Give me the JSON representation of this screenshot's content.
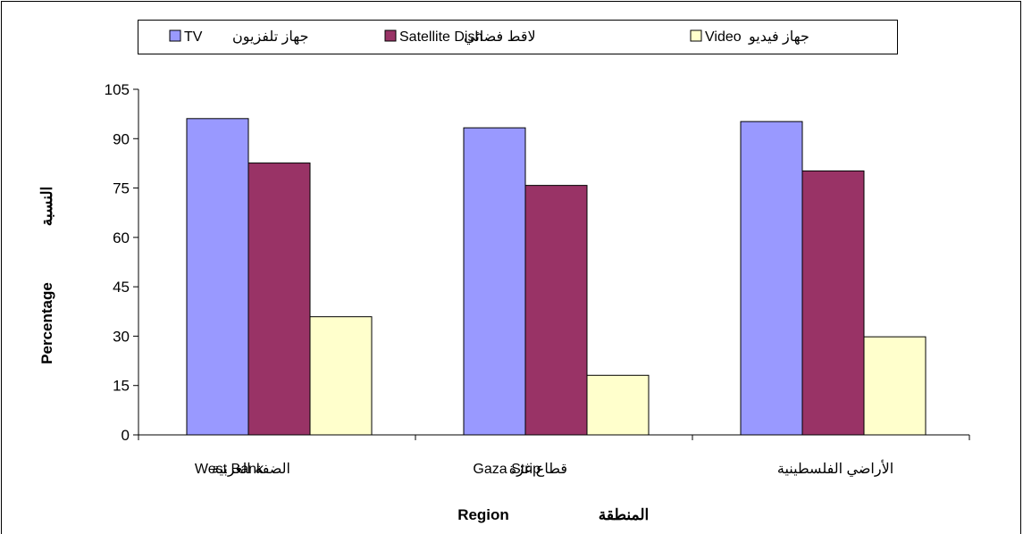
{
  "chart_data": {
    "type": "bar",
    "categories": [
      "West Bank  الضفة الغربية",
      "Gaza Strip  قطاع غزة",
      "الأراضي  الفلسطينية"
    ],
    "category_labels": [
      {
        "en": "West Bank",
        "ar": "الضفة الغربية"
      },
      {
        "en": "Gaza Strip",
        "ar": "قطاع غزة"
      },
      {
        "en": "",
        "ar": "الأراضي  الفلسطينية"
      }
    ],
    "series": [
      {
        "name": "TV  جهاز تلفزيون",
        "name_en": "TV",
        "name_ar": "جهاز تلفزيون",
        "color": "#9999ff",
        "values": [
          96.1,
          93.3,
          95.2
        ]
      },
      {
        "name": "Satellite Dish  لاقط فضائي",
        "name_en": "Satellite Dish",
        "name_ar": "لاقط فضائي",
        "color": "#993366",
        "values": [
          82.6,
          75.8,
          80.2
        ]
      },
      {
        "name": "Video  جهاز فيديو",
        "name_en": "Video",
        "name_ar": "جهاز فيديو",
        "color": "#ffffcc",
        "values": [
          35.9,
          18.1,
          29.8
        ]
      }
    ],
    "xlabel_en": "Region",
    "xlabel_ar": "المنطقة",
    "ylabel_en": "Percentage",
    "ylabel_ar": "النسبة",
    "ylim": [
      0,
      105
    ],
    "yticks": [
      0,
      15,
      30,
      45,
      60,
      75,
      90,
      105
    ],
    "grid": false,
    "legend_position": "top"
  }
}
